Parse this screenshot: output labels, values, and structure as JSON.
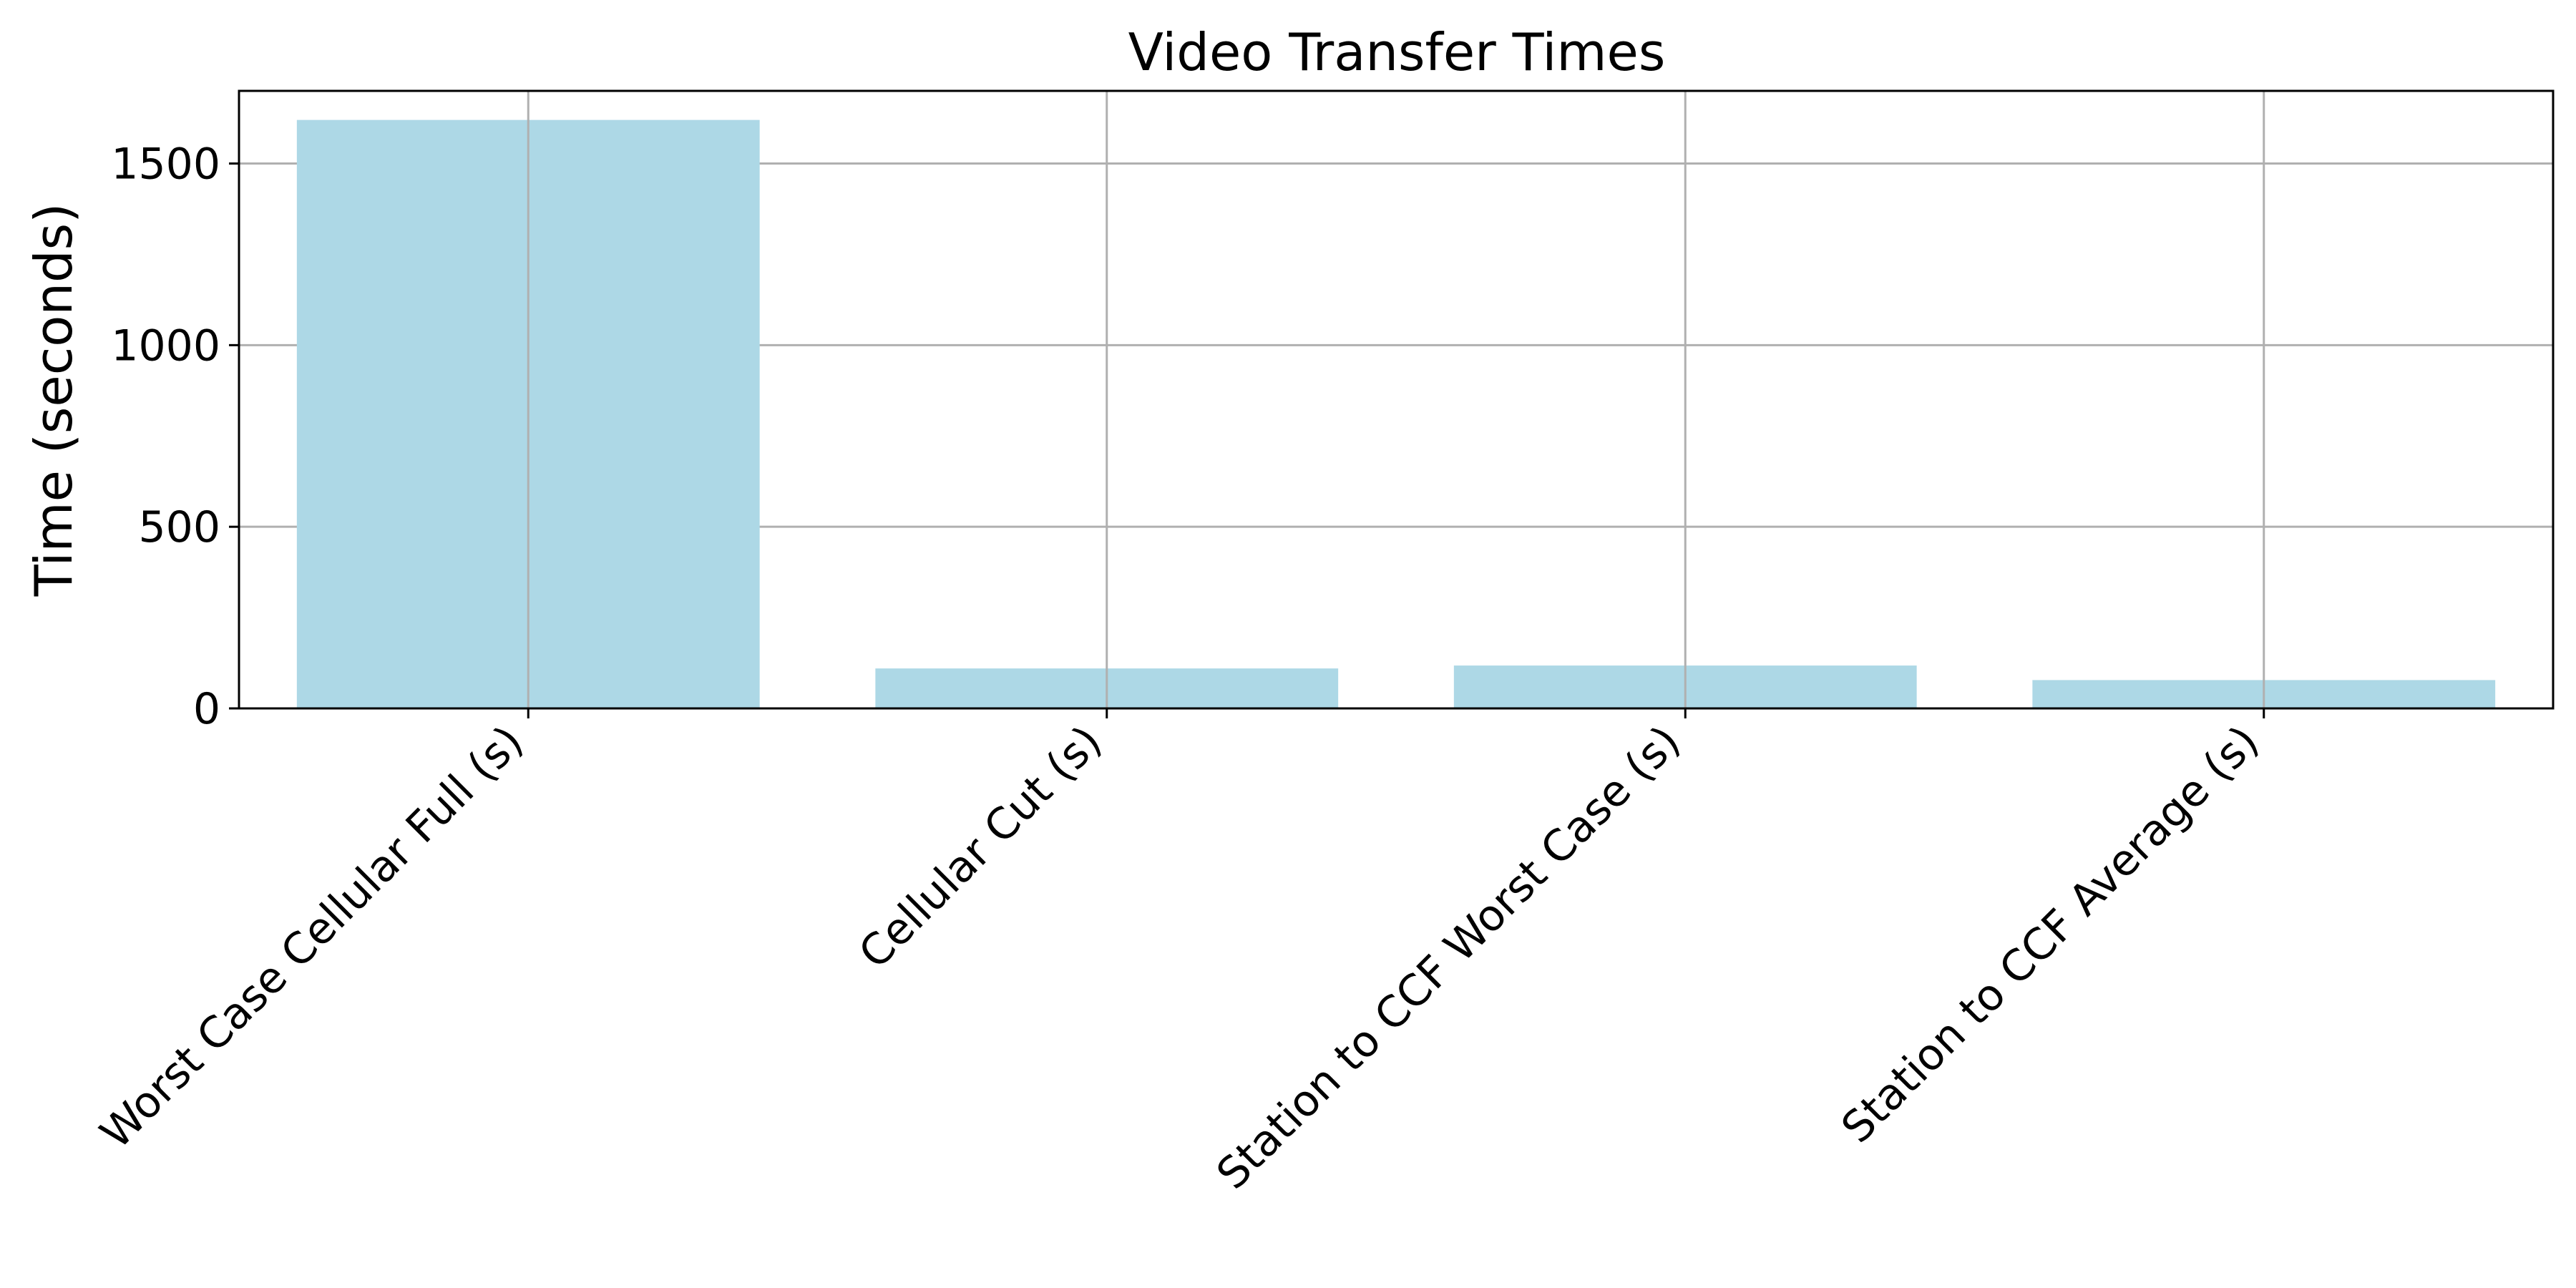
{
  "chart_data": {
    "type": "bar",
    "title": "Video Transfer Times",
    "xlabel": "",
    "ylabel": "Time (seconds)",
    "categories": [
      "Worst Case Cellular Full (s)",
      "Cellular Cut (s)",
      "Station to CCF Worst Case (s)",
      "Station to CCF Average (s)"
    ],
    "values": [
      1620,
      110,
      118,
      78
    ],
    "ylim": [
      0,
      1700
    ],
    "yticks": [
      0,
      500,
      1000,
      1500
    ],
    "grid": true,
    "bar_color": "#add8e6",
    "grid_color": "#b0b0b0"
  }
}
